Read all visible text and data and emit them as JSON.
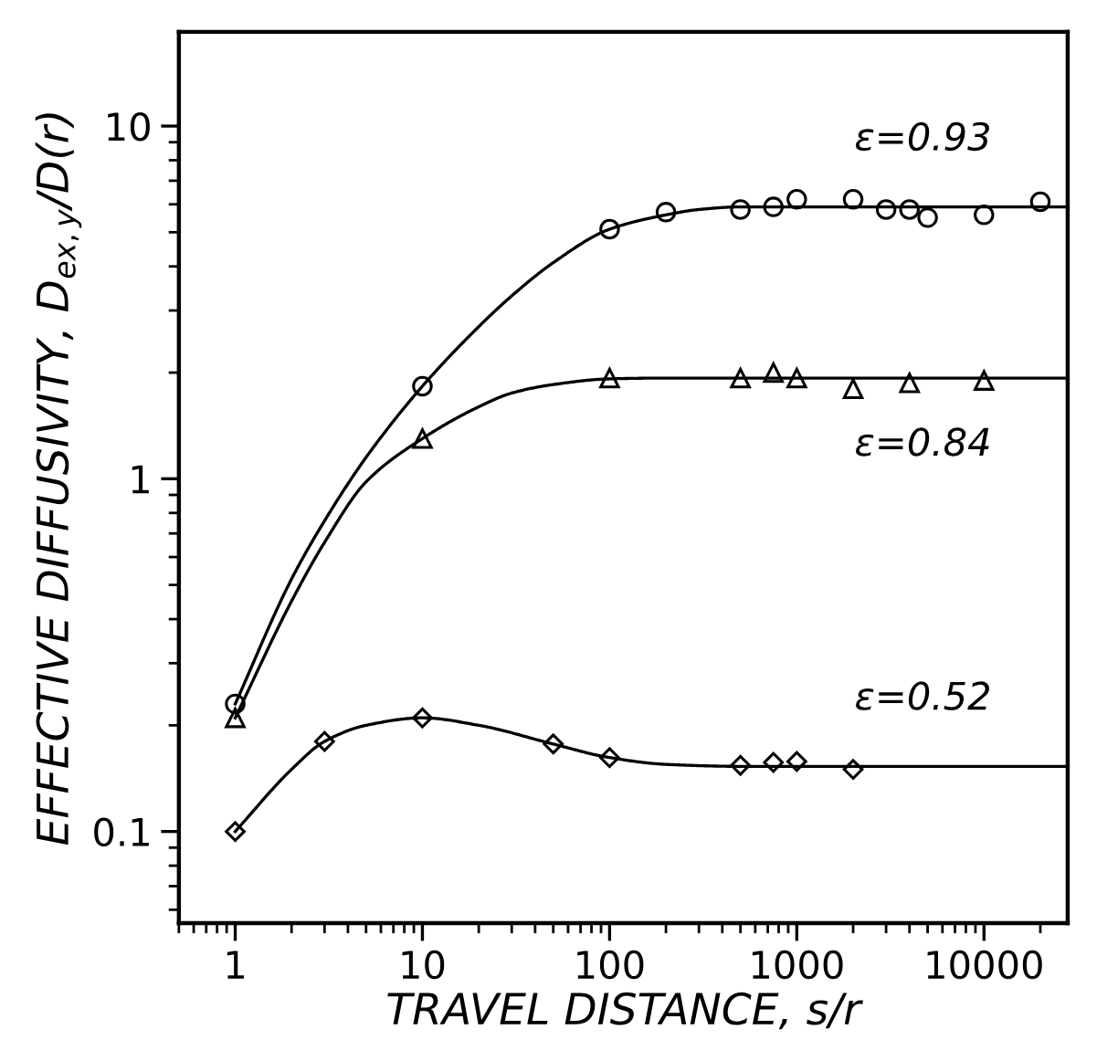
{
  "chart_data": {
    "type": "scatter",
    "xlabel": "TRAVEL DISTANCE, s/r",
    "ylabel": "EFFECTIVE DIFFUSIVITY, D$_{ex,y}$/D(r)",
    "log": "xy",
    "grid": false,
    "legend": false,
    "xlim": [
      0.5,
      28000
    ],
    "ylim": [
      0.055,
      18.5
    ],
    "xticks": [
      1,
      10,
      100,
      1000,
      10000
    ],
    "yticks": [
      0.1,
      1,
      10
    ],
    "series": [
      {
        "marker": "circle",
        "color": "#000000",
        "x": [
          1,
          10,
          100,
          200,
          500,
          750,
          1000,
          2000,
          3000,
          4000,
          5000,
          10000,
          20000
        ],
        "values": [
          0.23,
          1.83,
          5.1,
          5.7,
          5.8,
          5.9,
          6.2,
          6.2,
          5.8,
          5.8,
          5.5,
          5.6,
          6.1
        ]
      },
      {
        "marker": "triangle",
        "color": "#000000",
        "x": [
          1,
          10,
          100,
          500,
          750,
          1000,
          2000,
          4000,
          10000
        ],
        "values": [
          0.21,
          1.3,
          1.93,
          1.93,
          2.0,
          1.93,
          1.8,
          1.87,
          1.9
        ]
      },
      {
        "marker": "diamond",
        "color": "#000000",
        "x": [
          1,
          3,
          10,
          50,
          100,
          500,
          750,
          1000,
          2000
        ],
        "values": [
          0.1,
          0.18,
          0.21,
          0.177,
          0.162,
          0.154,
          0.157,
          0.158,
          0.15
        ]
      },
      {
        "type": "line",
        "name": "ε=0.93",
        "color": "#000000",
        "x": [
          1,
          2,
          3,
          5,
          10,
          20,
          30,
          50,
          100,
          200,
          300,
          500,
          1000,
          28000
        ],
        "values": [
          0.23,
          0.52,
          0.76,
          1.15,
          1.83,
          2.7,
          3.3,
          4.1,
          5.1,
          5.6,
          5.8,
          5.9,
          5.9,
          5.9
        ]
      },
      {
        "type": "line",
        "name": "ε=0.84",
        "color": "#000000",
        "x": [
          1,
          2,
          3,
          5,
          10,
          20,
          30,
          50,
          100,
          200,
          28000
        ],
        "values": [
          0.21,
          0.45,
          0.66,
          0.98,
          1.3,
          1.6,
          1.75,
          1.85,
          1.92,
          1.93,
          1.93
        ]
      },
      {
        "type": "line",
        "name": "ε=0.52",
        "color": "#000000",
        "x": [
          1,
          2,
          3,
          5,
          10,
          20,
          50,
          100,
          200,
          500,
          28000
        ],
        "values": [
          0.1,
          0.15,
          0.18,
          0.2,
          0.21,
          0.2,
          0.177,
          0.162,
          0.155,
          0.153,
          0.153
        ]
      }
    ]
  }
}
